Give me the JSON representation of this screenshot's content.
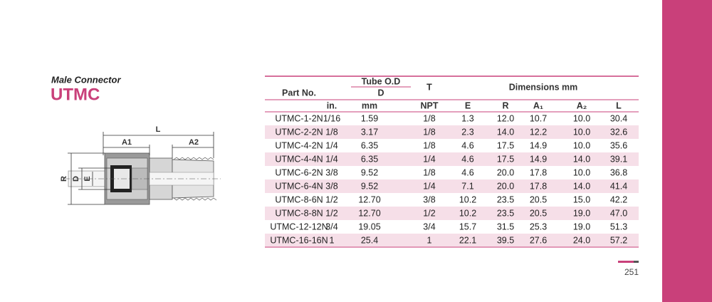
{
  "header": {
    "subtitle": "Male Connector",
    "title": "UTMC"
  },
  "diagram": {
    "labels": [
      "L",
      "A1",
      "A2",
      "R",
      "D",
      "E"
    ]
  },
  "table": {
    "group_headers": {
      "part_no": "Part No.",
      "tube_od": "Tube O.D",
      "d": "D",
      "t": "T",
      "dimensions": "Dimensions mm"
    },
    "columns": [
      "in.",
      "mm",
      "NPT",
      "E",
      "R",
      "A₁",
      "A₂",
      "L"
    ],
    "rows": [
      [
        "UTMC-1-2N",
        "1/16",
        "1.59",
        "1/8",
        "1.3",
        "12.0",
        "10.7",
        "10.0",
        "30.4"
      ],
      [
        "UTMC-2-2N",
        "1/8",
        "3.17",
        "1/8",
        "2.3",
        "14.0",
        "12.2",
        "10.0",
        "32.6"
      ],
      [
        "UTMC-4-2N",
        "1/4",
        "6.35",
        "1/8",
        "4.6",
        "17.5",
        "14.9",
        "10.0",
        "35.6"
      ],
      [
        "UTMC-4-4N",
        "1/4",
        "6.35",
        "1/4",
        "4.6",
        "17.5",
        "14.9",
        "14.0",
        "39.1"
      ],
      [
        "UTMC-6-2N",
        "3/8",
        "9.52",
        "1/8",
        "4.6",
        "20.0",
        "17.8",
        "10.0",
        "36.8"
      ],
      [
        "UTMC-6-4N",
        "3/8",
        "9.52",
        "1/4",
        "7.1",
        "20.0",
        "17.8",
        "14.0",
        "41.4"
      ],
      [
        "UTMC-8-6N",
        "1/2",
        "12.70",
        "3/8",
        "10.2",
        "23.5",
        "20.5",
        "15.0",
        "42.2"
      ],
      [
        "UTMC-8-8N",
        "1/2",
        "12.70",
        "1/2",
        "10.2",
        "23.5",
        "20.5",
        "19.0",
        "47.0"
      ],
      [
        "UTMC-12-12N",
        "3/4",
        "19.05",
        "3/4",
        "15.7",
        "31.5",
        "25.3",
        "19.0",
        "51.3"
      ],
      [
        "UTMC-16-16N",
        "1",
        "25.4",
        "1",
        "22.1",
        "39.5",
        "27.6",
        "24.0",
        "57.2"
      ]
    ]
  },
  "page_number": "251"
}
